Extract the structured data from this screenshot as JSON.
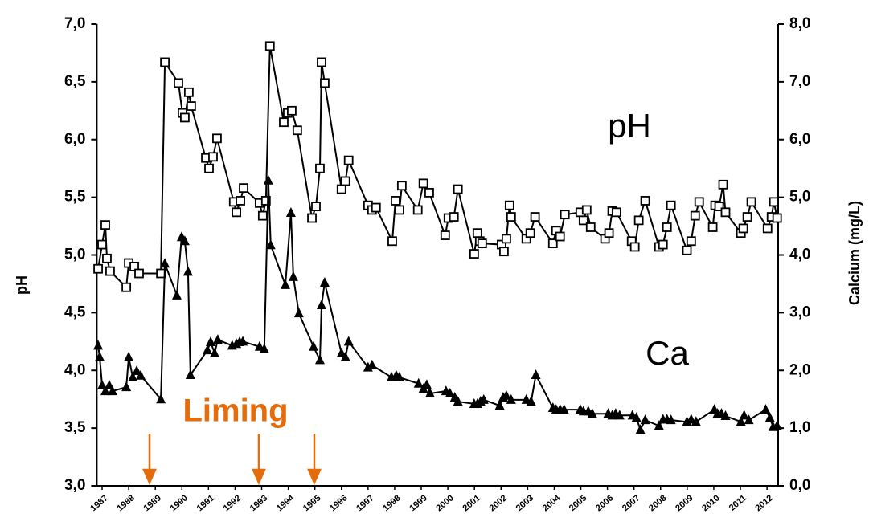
{
  "chart_data": {
    "type": "line",
    "y_label": "pH",
    "y2_label": "Calcium (mg/L)",
    "annotation": "Liming",
    "xlim": [
      1986.8,
      2012.42
    ],
    "xticks": [
      1987,
      1988,
      1989,
      1990,
      1991,
      1992,
      1993,
      1994,
      1995,
      1996,
      1997,
      1998,
      1999,
      2000,
      2001,
      2002,
      2003,
      2004,
      2005,
      2006,
      2007,
      2008,
      2009,
      2010,
      2011,
      2012
    ],
    "ylim": [
      3.0,
      7.0
    ],
    "yticks": [
      {
        "value": 3.0,
        "label": "3,0"
      },
      {
        "value": 3.5,
        "label": "3,5"
      },
      {
        "value": 4.0,
        "label": "4,0"
      },
      {
        "value": 4.5,
        "label": "4,5"
      },
      {
        "value": 5.0,
        "label": "5,0"
      },
      {
        "value": 5.5,
        "label": "5,5"
      },
      {
        "value": 6.0,
        "label": "6,0"
      },
      {
        "value": 6.5,
        "label": "6,5"
      },
      {
        "value": 7.0,
        "label": "7,0"
      }
    ],
    "y2lim": [
      0,
      8
    ],
    "y2ticks": [
      {
        "value": 0,
        "label": "0,0"
      },
      {
        "value": 1,
        "label": "1,0"
      },
      {
        "value": 2,
        "label": "2,0"
      },
      {
        "value": 3,
        "label": "3,0"
      },
      {
        "value": 4,
        "label": "4,0"
      },
      {
        "value": 5,
        "label": "5,0"
      },
      {
        "value": 6,
        "label": "6,0"
      },
      {
        "value": 7,
        "label": "7,0"
      },
      {
        "value": 8,
        "label": "8,0"
      }
    ],
    "series": [
      {
        "name": "pH",
        "color": "#000000",
        "marker": "square",
        "x": [
          1986.85,
          1987.0,
          1987.12,
          1987.18,
          1987.3,
          1987.91,
          1988.0,
          1988.21,
          1988.39,
          1989.21,
          1989.36,
          1989.87,
          1990.02,
          1990.11,
          1990.26,
          1990.35,
          1990.9,
          1991.02,
          1991.17,
          1991.32,
          1991.95,
          1992.05,
          1992.2,
          1992.32,
          1992.92,
          1993.04,
          1993.16,
          1993.31,
          1993.83,
          1993.98,
          1994.13,
          1994.34,
          1994.89,
          1995.04,
          1995.19,
          1995.25,
          1995.37,
          1996.0,
          1996.15,
          1996.27,
          1997.0,
          1997.15,
          1997.3,
          1997.91,
          1998.03,
          1998.18,
          1998.27,
          1998.87,
          1999.08,
          1999.3,
          1999.9,
          2000.02,
          2000.23,
          2000.38,
          2000.99,
          2001.11,
          2001.2,
          2001.29,
          2002.02,
          2002.11,
          2002.2,
          2002.32,
          2002.38,
          2002.95,
          2003.1,
          2003.28,
          2003.95,
          2004.07,
          2004.22,
          2004.4,
          2004.98,
          2005.1,
          2005.22,
          2005.37,
          2005.91,
          2006.06,
          2006.18,
          2006.34,
          2006.91,
          2007.03,
          2007.18,
          2007.42,
          2007.94,
          2008.09,
          2008.24,
          2008.39,
          2008.99,
          2009.15,
          2009.3,
          2009.45,
          2009.96,
          2010.05,
          2010.2,
          2010.35,
          2010.44,
          2011.02,
          2011.11,
          2011.26,
          2011.41,
          2012.02,
          2012.17,
          2012.26,
          2012.38
        ],
        "values": [
          4.88,
          5.09,
          5.26,
          4.97,
          4.86,
          4.72,
          4.93,
          4.9,
          4.84,
          4.84,
          6.67,
          6.49,
          6.23,
          6.19,
          6.41,
          6.29,
          5.84,
          5.75,
          5.85,
          6.01,
          5.46,
          5.37,
          5.47,
          5.58,
          5.45,
          5.34,
          5.47,
          6.81,
          6.15,
          6.23,
          6.25,
          6.08,
          5.32,
          5.42,
          5.75,
          6.67,
          6.49,
          5.57,
          5.64,
          5.82,
          5.43,
          5.39,
          5.41,
          5.12,
          5.47,
          5.39,
          5.6,
          5.39,
          5.62,
          5.54,
          5.17,
          5.32,
          5.33,
          5.57,
          5.01,
          5.19,
          5.12,
          5.1,
          5.09,
          5.03,
          5.14,
          5.43,
          5.33,
          5.14,
          5.19,
          5.33,
          5.1,
          5.21,
          5.16,
          5.35,
          5.37,
          5.3,
          5.39,
          5.24,
          5.14,
          5.19,
          5.38,
          5.37,
          5.12,
          5.07,
          5.3,
          5.47,
          5.07,
          5.09,
          5.24,
          5.43,
          5.04,
          5.12,
          5.34,
          5.46,
          5.24,
          5.43,
          5.42,
          5.61,
          5.37,
          5.19,
          5.23,
          5.33,
          5.46,
          5.23,
          5.33,
          5.46,
          5.32
        ]
      },
      {
        "name": "Ca",
        "color": "#000000",
        "marker": "triangle",
        "axis": "y2",
        "x": [
          1986.85,
          1986.91,
          1987.0,
          1987.12,
          1987.27,
          1987.39,
          1987.91,
          1988.0,
          1988.15,
          1988.3,
          1988.45,
          1989.21,
          1989.36,
          1989.81,
          1989.99,
          1990.11,
          1990.23,
          1990.32,
          1990.96,
          1991.08,
          1991.23,
          1991.35,
          1991.89,
          1992.05,
          1992.17,
          1992.29,
          1992.92,
          1993.1,
          1993.25,
          1993.34,
          1993.89,
          1994.1,
          1994.19,
          1994.4,
          1994.95,
          1995.19,
          1995.25,
          1995.37,
          1996.0,
          1996.15,
          1996.27,
          1997.0,
          1997.15,
          1997.88,
          1998.06,
          1998.18,
          1998.9,
          1999.08,
          1999.21,
          1999.33,
          1999.93,
          2000.08,
          2000.26,
          2000.38,
          2000.99,
          2001.11,
          2001.23,
          2001.35,
          2001.95,
          2002.08,
          2002.2,
          2002.38,
          2002.95,
          2003.13,
          2003.31,
          2003.95,
          2004.07,
          2004.22,
          2004.37,
          2004.98,
          2005.1,
          2005.28,
          2005.43,
          2006.03,
          2006.18,
          2006.31,
          2006.46,
          2006.94,
          2007.09,
          2007.24,
          2007.42,
          2007.94,
          2008.09,
          2008.24,
          2008.39,
          2008.99,
          2009.15,
          2009.33,
          2010.02,
          2010.14,
          2010.29,
          2010.44,
          2011.02,
          2011.14,
          2011.32,
          2011.95,
          2012.11,
          2012.23,
          2012.38
        ],
        "values": [
          2.43,
          2.23,
          1.74,
          1.64,
          1.74,
          1.64,
          1.71,
          2.23,
          1.88,
          1.99,
          1.91,
          1.5,
          3.85,
          3.3,
          4.31,
          4.24,
          3.71,
          1.92,
          2.35,
          2.49,
          2.3,
          2.53,
          2.43,
          2.46,
          2.49,
          2.5,
          2.41,
          2.37,
          5.29,
          4.17,
          3.48,
          4.73,
          3.62,
          2.99,
          2.41,
          2.18,
          3.13,
          3.52,
          2.3,
          2.23,
          2.5,
          2.05,
          2.09,
          1.88,
          1.91,
          1.88,
          1.77,
          1.68,
          1.75,
          1.6,
          1.64,
          1.6,
          1.53,
          1.46,
          1.42,
          1.42,
          1.46,
          1.49,
          1.39,
          1.53,
          1.56,
          1.49,
          1.49,
          1.46,
          1.92,
          1.35,
          1.32,
          1.32,
          1.32,
          1.32,
          1.29,
          1.29,
          1.25,
          1.25,
          1.22,
          1.25,
          1.22,
          1.22,
          1.18,
          0.97,
          1.14,
          1.04,
          1.15,
          1.15,
          1.14,
          1.11,
          1.15,
          1.11,
          1.32,
          1.25,
          1.25,
          1.21,
          1.11,
          1.22,
          1.14,
          1.32,
          1.18,
          1.02,
          1.04
        ]
      }
    ]
  }
}
